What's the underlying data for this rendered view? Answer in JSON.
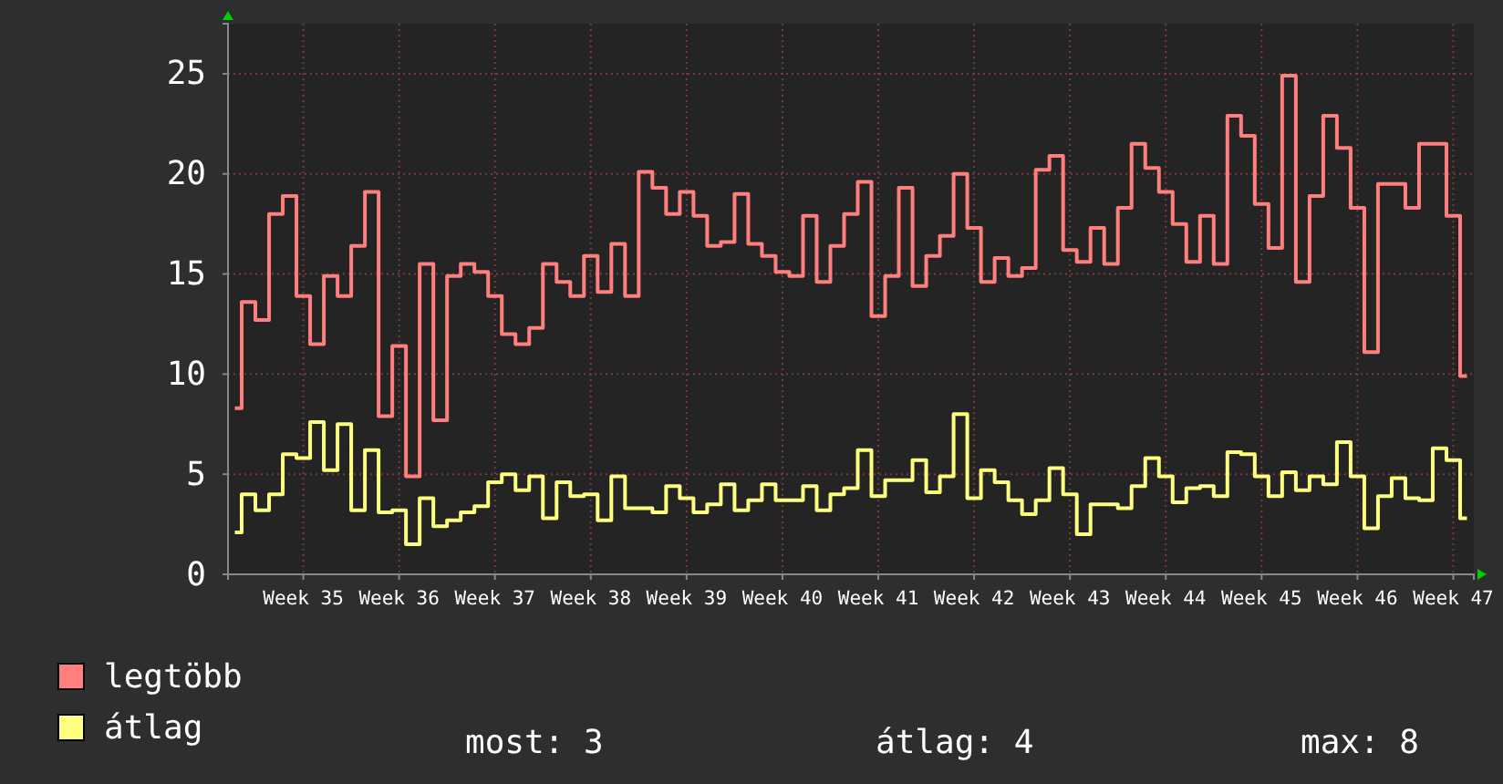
{
  "chart_data": {
    "type": "step",
    "categories": [
      null,
      null,
      null,
      null,
      null,
      "Week 35",
      null,
      null,
      null,
      null,
      null,
      null,
      "Week 36",
      null,
      null,
      null,
      null,
      null,
      null,
      "Week 37",
      null,
      null,
      null,
      null,
      null,
      null,
      "Week 38",
      null,
      null,
      null,
      null,
      null,
      null,
      "Week 39",
      null,
      null,
      null,
      null,
      null,
      null,
      "Week 40",
      null,
      null,
      null,
      null,
      null,
      null,
      "Week 41",
      null,
      null,
      null,
      null,
      null,
      null,
      "Week 42",
      null,
      null,
      null,
      null,
      null,
      null,
      "Week 43",
      null,
      null,
      null,
      null,
      null,
      null,
      "Week 44",
      null,
      null,
      null,
      null,
      null,
      null,
      "Week 45",
      null,
      null,
      null,
      null,
      null,
      null,
      "Week 46",
      null,
      null,
      null,
      null,
      null,
      null,
      "Week 47",
      null
    ],
    "series": [
      {
        "name": "legtöbb",
        "color": "#ff7f7f",
        "values": [
          8.3,
          13.6,
          12.7,
          18.0,
          18.9,
          13.9,
          11.5,
          14.9,
          13.9,
          16.4,
          19.1,
          7.9,
          11.4,
          4.9,
          15.5,
          7.7,
          14.9,
          15.5,
          15.1,
          13.9,
          12.0,
          11.5,
          12.3,
          15.5,
          14.6,
          13.9,
          15.9,
          14.1,
          16.5,
          13.9,
          20.1,
          19.3,
          18.0,
          19.1,
          17.9,
          16.4,
          16.6,
          19.0,
          16.5,
          15.9,
          15.1,
          14.9,
          17.9,
          14.6,
          16.4,
          18.0,
          19.6,
          12.9,
          14.9,
          19.3,
          14.4,
          15.9,
          16.9,
          20.0,
          17.3,
          14.6,
          15.8,
          14.9,
          15.3,
          20.2,
          20.9,
          16.2,
          15.6,
          17.3,
          15.5,
          18.3,
          21.5,
          20.3,
          19.1,
          17.5,
          15.6,
          17.9,
          15.5,
          22.9,
          21.9,
          18.5,
          16.3,
          24.9,
          14.6,
          18.9,
          22.9,
          21.3,
          18.3,
          11.1,
          19.5,
          19.5,
          18.3,
          21.5,
          21.5,
          17.9,
          9.9
        ]
      },
      {
        "name": "átlag",
        "color": "#ffff7f",
        "values": [
          2.1,
          4.0,
          3.2,
          4.0,
          6.0,
          5.8,
          7.6,
          5.2,
          7.5,
          3.2,
          6.2,
          3.1,
          3.2,
          1.5,
          3.8,
          2.4,
          2.7,
          3.1,
          3.4,
          4.6,
          5.0,
          4.2,
          4.9,
          2.8,
          4.6,
          3.9,
          4.0,
          2.7,
          4.9,
          3.3,
          3.3,
          3.1,
          4.4,
          3.8,
          3.1,
          3.5,
          4.5,
          3.2,
          3.7,
          4.5,
          3.7,
          3.7,
          4.4,
          3.2,
          4.0,
          4.3,
          6.2,
          3.9,
          4.7,
          4.7,
          5.7,
          4.1,
          4.9,
          8.0,
          3.8,
          5.2,
          4.6,
          3.7,
          3.0,
          3.7,
          5.3,
          4.0,
          2.0,
          3.5,
          3.5,
          3.3,
          4.4,
          5.8,
          4.9,
          3.6,
          4.3,
          4.4,
          3.9,
          6.1,
          6.0,
          4.9,
          3.9,
          5.1,
          4.2,
          4.9,
          4.5,
          6.6,
          4.9,
          2.3,
          3.9,
          4.8,
          3.8,
          3.7,
          6.3,
          5.7,
          2.8
        ]
      }
    ],
    "ylim": [
      0,
      27.5
    ],
    "yticks": [
      0,
      5,
      10,
      15,
      20,
      25
    ],
    "grid": true,
    "legend": "bottom",
    "annotations": [
      "most: 3",
      "átlag: 4",
      "max: 8"
    ]
  }
}
